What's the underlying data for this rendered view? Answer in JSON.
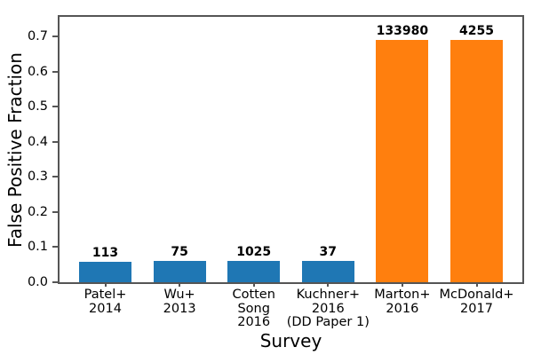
{
  "chart_data": {
    "type": "bar",
    "title": "",
    "xlabel": "Survey",
    "ylabel": "False Positive Fraction",
    "ylim": [
      0,
      0.756
    ],
    "yticks": [
      0.0,
      0.1,
      0.2,
      0.3,
      0.4,
      0.5,
      0.6,
      0.7
    ],
    "grid": false,
    "legend": null,
    "categories": [
      "Patel+ 2014",
      "Wu+ 2013",
      "Cotten Song 2016",
      "Kuchner+ 2016 (DD Paper 1)",
      "Marton+ 2016",
      "McDonald+ 2017"
    ],
    "category_lines": [
      [
        "Patel+",
        "2014"
      ],
      [
        "Wu+",
        "2013"
      ],
      [
        "Cotten",
        "Song",
        "2016"
      ],
      [
        "Kuchner+",
        "2016",
        "(DD Paper 1)"
      ],
      [
        "Marton+",
        "2016"
      ],
      [
        "McDonald+",
        "2017"
      ]
    ],
    "values": [
      0.057,
      0.06,
      0.06,
      0.06,
      0.69,
      0.69
    ],
    "bar_labels": [
      "113",
      "75",
      "1025",
      "37",
      "133980",
      "4255"
    ],
    "bar_colors": [
      "#1f77b4",
      "#1f77b4",
      "#1f77b4",
      "#1f77b4",
      "#ff7f0e",
      "#ff7f0e"
    ],
    "axis_color": "#555555",
    "text_color": "#000000",
    "background_color": "#ffffff"
  }
}
